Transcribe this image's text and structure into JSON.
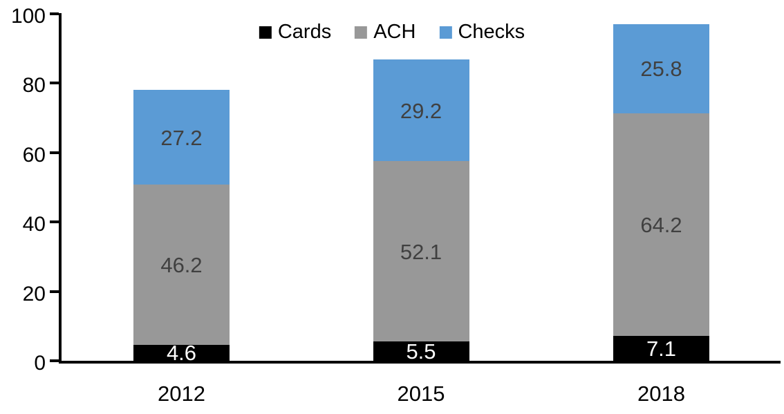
{
  "chart_data": {
    "type": "bar",
    "subtype": "stacked",
    "title": "",
    "xlabel": "",
    "ylabel": "",
    "categories": [
      "2012",
      "2015",
      "2018"
    ],
    "series": [
      {
        "name": "Cards",
        "values": [
          4.6,
          5.5,
          7.1
        ],
        "color": "#000000",
        "label_color": "#ffffff"
      },
      {
        "name": "ACH",
        "values": [
          46.2,
          52.1,
          64.2
        ],
        "color": "#989898",
        "label_color": "#404040"
      },
      {
        "name": "Checks",
        "values": [
          27.2,
          29.2,
          25.8
        ],
        "color": "#5b9bd5",
        "label_color": "#404040"
      }
    ],
    "data_labels": {
      "visible": true,
      "format": "one_decimal",
      "values_as_shown": [
        [
          "4.6",
          "5.5",
          "7.1"
        ],
        [
          "46.2",
          "52.1",
          "64.2"
        ],
        [
          "27.2",
          "29.2",
          "25.8"
        ]
      ]
    },
    "ylim": [
      0,
      100
    ],
    "yticks": [
      0,
      20,
      40,
      60,
      80,
      100
    ],
    "ytick_labels": [
      "0",
      "20",
      "40",
      "60",
      "80",
      "100"
    ],
    "grid": false,
    "background_color": "#ffffff",
    "axis_color": "#000000",
    "legend": {
      "position": "top-center",
      "entries": [
        "Cards",
        "ACH",
        "Checks"
      ]
    }
  }
}
